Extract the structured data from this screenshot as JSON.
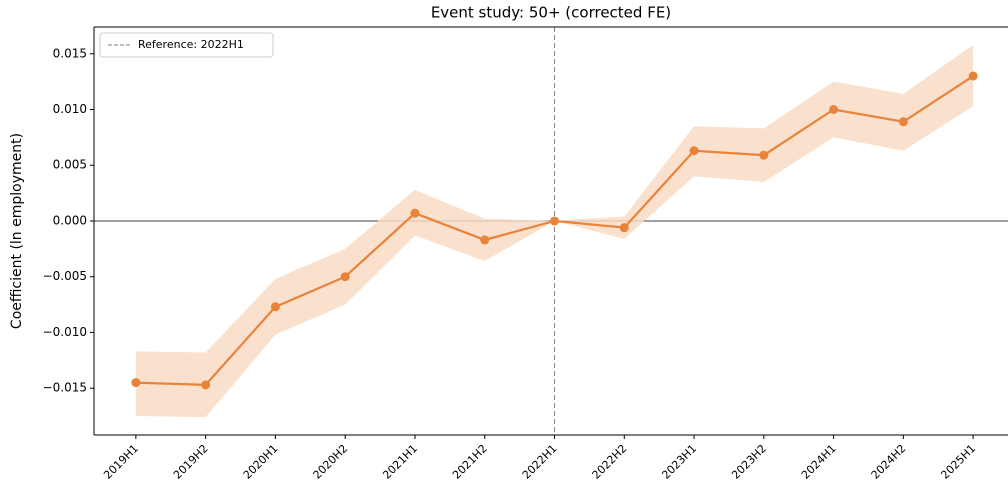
{
  "chart_data": {
    "type": "line",
    "title": "Event study: 50+ (corrected FE)",
    "y_label": "Coefficient (ln employment)",
    "categories": [
      "2019H1",
      "2019H2",
      "2020H1",
      "2020H2",
      "2021H1",
      "2021H2",
      "2022H1",
      "2022H2",
      "2023H1",
      "2023H2",
      "2024H1",
      "2024H2",
      "2025H1"
    ],
    "series": [
      {
        "color": "#e8833a",
        "band_color": "#f9dcc4",
        "values": [
          -0.0145,
          -0.0147,
          -0.0077,
          -0.005,
          0.0007,
          -0.0017,
          0,
          -0.0006,
          0.0063,
          0.0059,
          0.01,
          0.0089,
          0.013
        ],
        "lower": [
          -0.0175,
          -0.0176,
          -0.0102,
          -0.0075,
          -0.0013,
          -0.0036,
          0,
          -0.0016,
          0.004,
          0.0035,
          0.0075,
          0.0063,
          0.0103
        ],
        "upper": [
          -0.0117,
          -0.0118,
          -0.0052,
          -0.0025,
          0.0028,
          0.0002,
          0,
          0.0004,
          0.0085,
          0.0083,
          0.0125,
          0.0114,
          0.0158
        ]
      }
    ],
    "hline": 0,
    "vline": {
      "x": "2022H1",
      "label": "Reference: 2022H1",
      "color": "#808080"
    },
    "legend": "upper left",
    "ylim": [
      -0.0192,
      0.0174
    ],
    "yticks": [
      {
        "value": -0.015,
        "label": "−0.015"
      },
      {
        "value": -0.01,
        "label": "−0.010"
      },
      {
        "value": -0.005,
        "label": "−0.005"
      },
      {
        "value": 0,
        "label": "0.000"
      },
      {
        "value": 0.005,
        "label": "0.005"
      },
      {
        "value": 0.01,
        "label": "0.010"
      },
      {
        "value": 0.015,
        "label": "0.015"
      }
    ]
  }
}
